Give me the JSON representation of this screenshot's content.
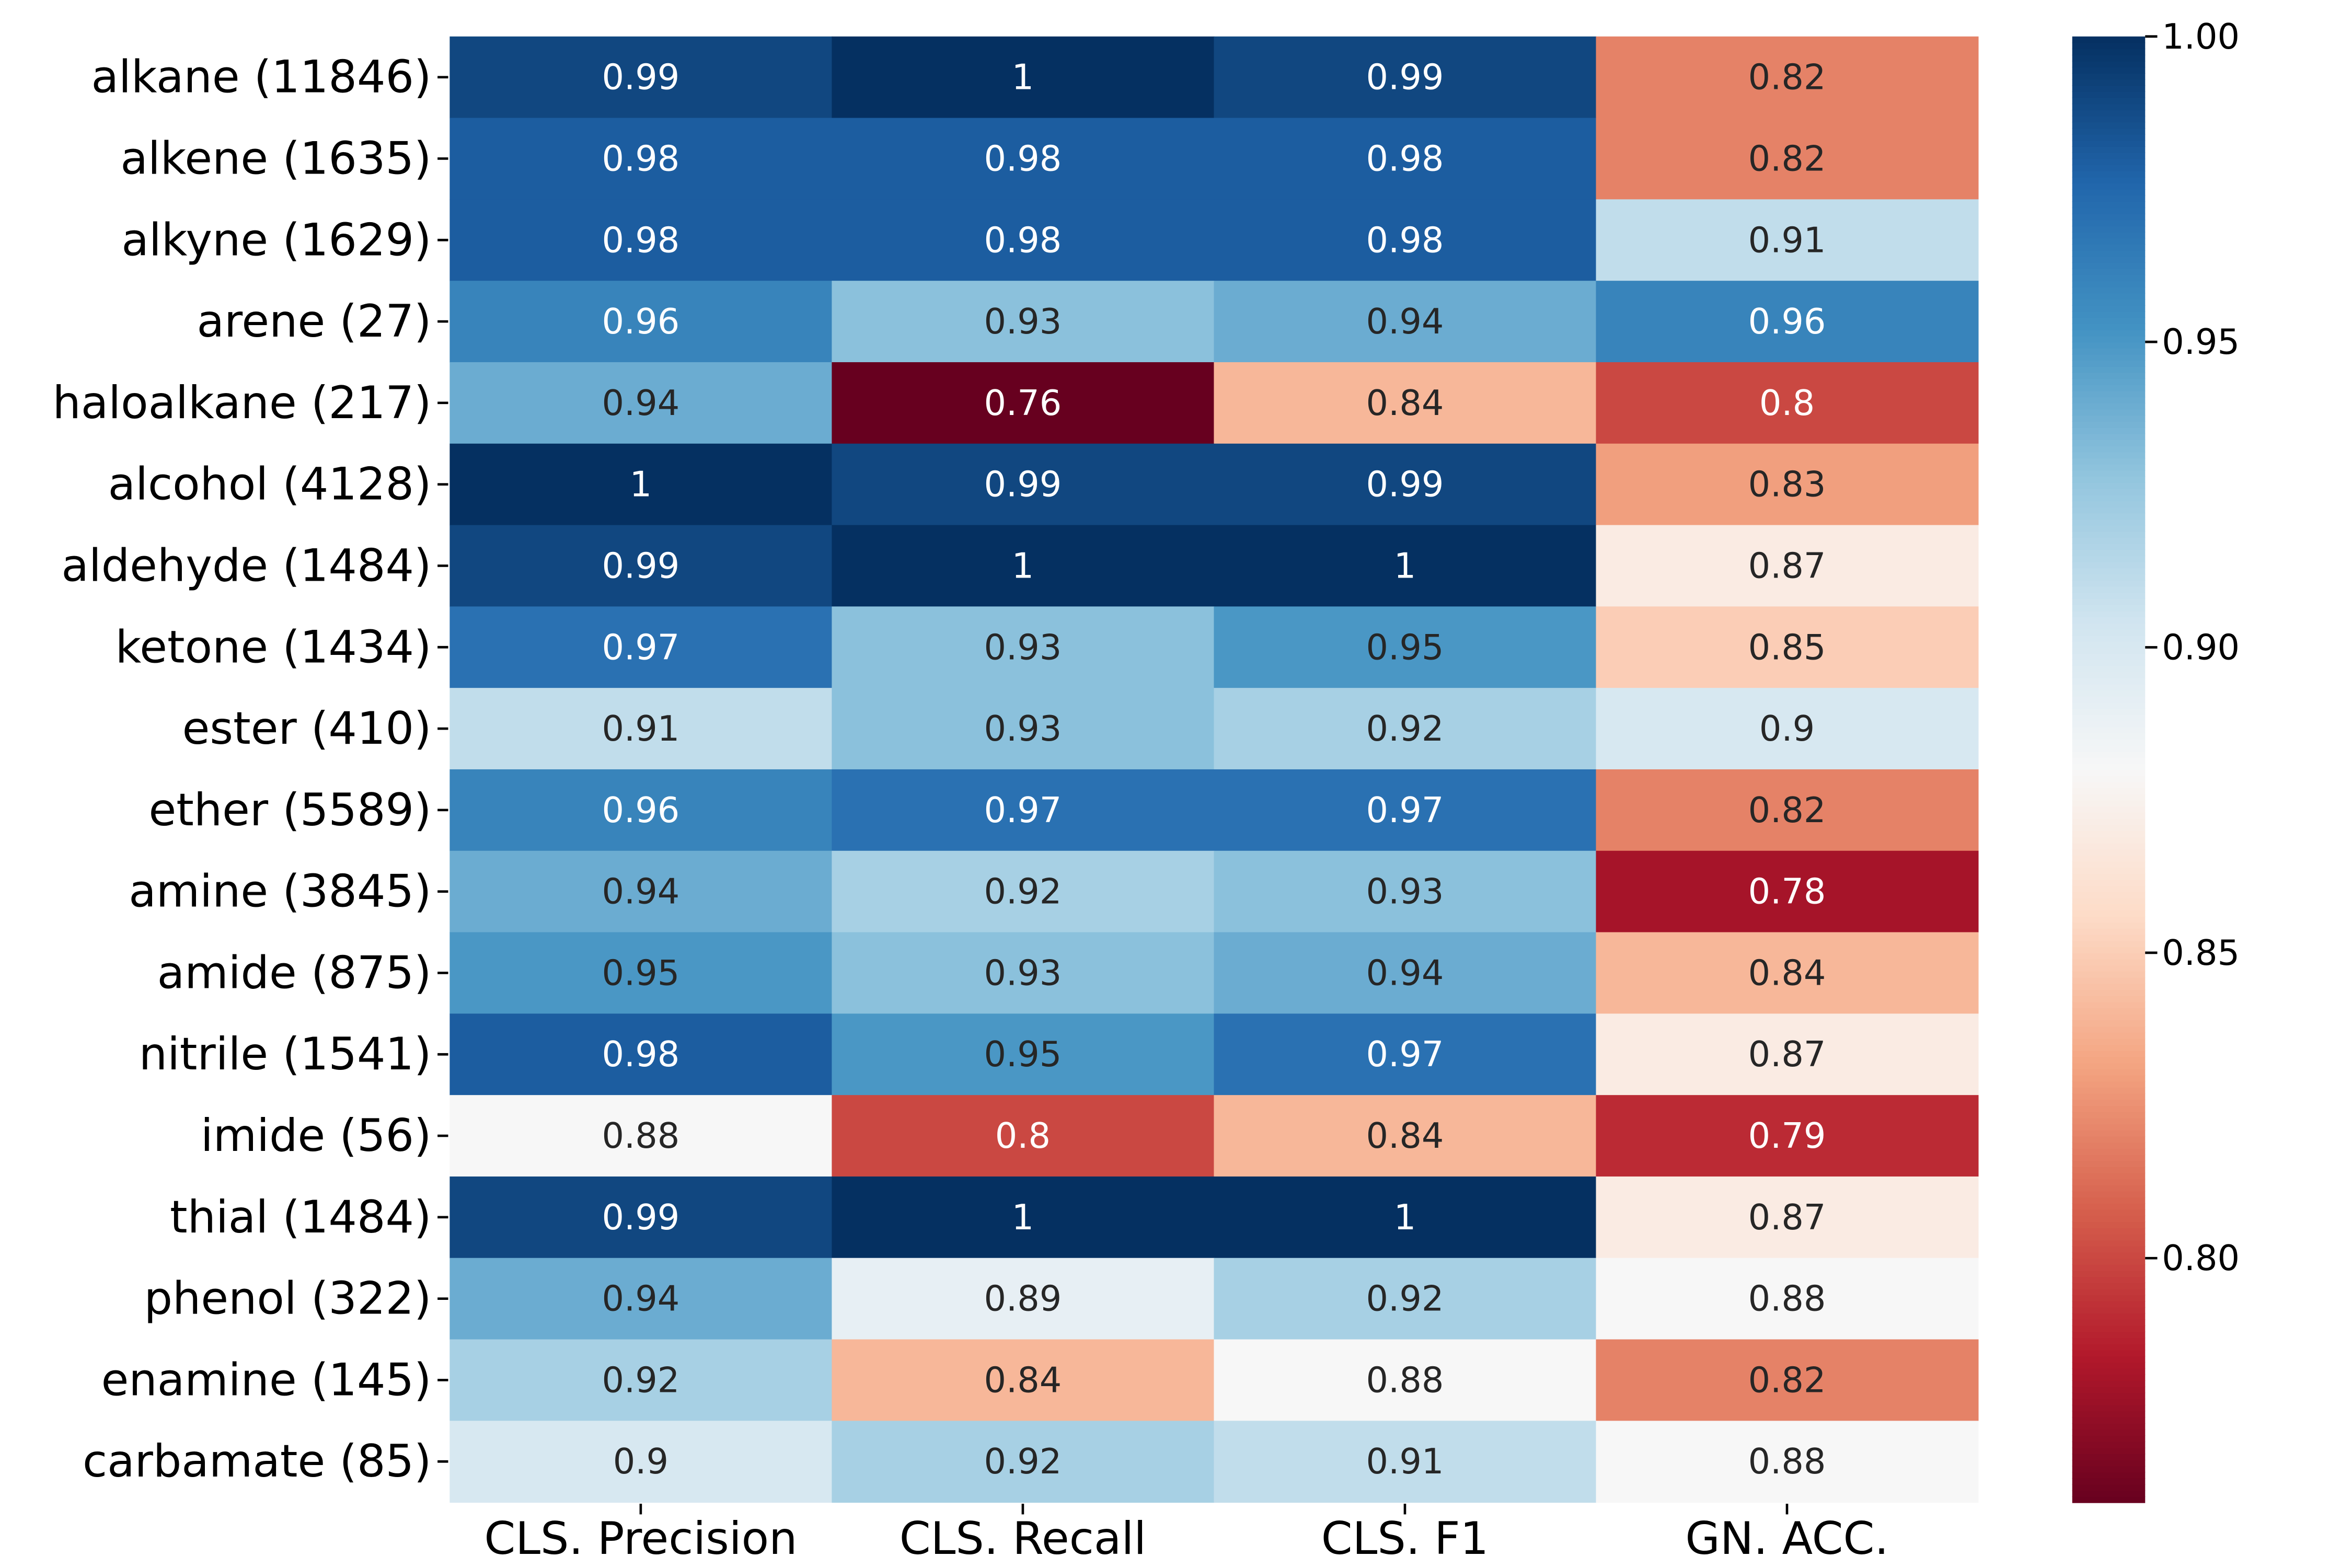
{
  "chart_data": {
    "type": "heatmap",
    "title": "",
    "xlabel": "",
    "ylabel": "",
    "columns": [
      "CLS. Precision",
      "CLS. Recall",
      "CLS. F1",
      "GN. ACC."
    ],
    "rows": [
      "alkane (11846)",
      "alkene (1635)",
      "alkyne (1629)",
      "arene (27)",
      "haloalkane (217)",
      "alcohol (4128)",
      "aldehyde (1484)",
      "ketone (1434)",
      "ester (410)",
      "ether (5589)",
      "amine (3845)",
      "amide (875)",
      "nitrile (1541)",
      "imide (56)",
      "thial (1484)",
      "phenol (322)",
      "enamine (145)",
      "carbamate (85)"
    ],
    "values": [
      [
        0.99,
        1,
        0.99,
        0.82
      ],
      [
        0.98,
        0.98,
        0.98,
        0.82
      ],
      [
        0.98,
        0.98,
        0.98,
        0.91
      ],
      [
        0.96,
        0.93,
        0.94,
        0.96
      ],
      [
        0.94,
        0.76,
        0.84,
        0.8
      ],
      [
        1,
        0.99,
        0.99,
        0.83
      ],
      [
        0.99,
        1,
        1,
        0.87
      ],
      [
        0.97,
        0.93,
        0.95,
        0.85
      ],
      [
        0.91,
        0.93,
        0.92,
        0.9
      ],
      [
        0.96,
        0.97,
        0.97,
        0.82
      ],
      [
        0.94,
        0.92,
        0.93,
        0.78
      ],
      [
        0.95,
        0.93,
        0.94,
        0.84
      ],
      [
        0.98,
        0.95,
        0.97,
        0.87
      ],
      [
        0.88,
        0.8,
        0.84,
        0.79
      ],
      [
        0.99,
        1,
        1,
        0.87
      ],
      [
        0.94,
        0.89,
        0.92,
        0.88
      ],
      [
        0.92,
        0.84,
        0.88,
        0.82
      ],
      [
        0.9,
        0.92,
        0.91,
        0.88
      ]
    ],
    "colormap": "RdBu",
    "vmin": 0.76,
    "vmax": 1.0,
    "colorbar": {
      "ticks": [
        1.0,
        0.95,
        0.9,
        0.85,
        0.8
      ],
      "tick_labels": [
        "1.00",
        "0.95",
        "0.90",
        "0.85",
        "0.80"
      ],
      "placement": "right"
    },
    "colors": {
      "dark_red": "#67001f",
      "red": "#b2182b",
      "mid_red": "#d6604d",
      "light_red": "#f4a582",
      "pale_red": "#fddbc7",
      "white": "#f7f7f7",
      "pale_blue": "#d1e5f0",
      "light_blue": "#92c5de",
      "mid_blue": "#4393c3",
      "blue": "#2166ac",
      "dark_blue": "#053061"
    }
  }
}
